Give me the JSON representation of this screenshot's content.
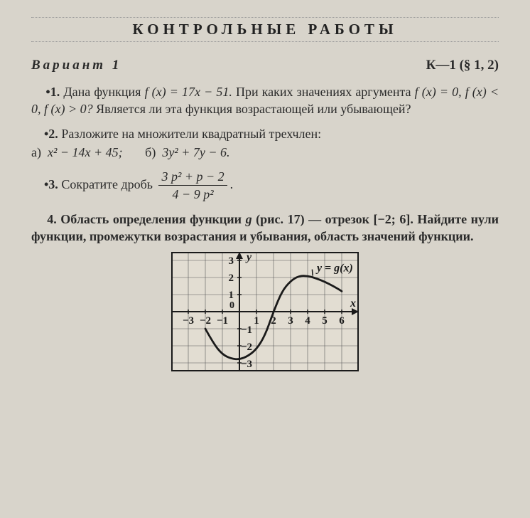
{
  "title": "КОНТРОЛЬНЫЕ РАБОТЫ",
  "variant": "Вариант 1",
  "code": "К—1 (§ 1, 2)",
  "q1": {
    "lead": "•1. ",
    "text_a": "Дана функция ",
    "fx_eq": "f (x) = 17x − 51.",
    "text_b": " При каких значени­ях аргумента ",
    "c1": "f (x) = 0, ",
    "c2": "f (x) < 0, ",
    "c3": "f (x) > 0?",
    "text_c": " Является ли эта функция возрастающей или убывающей?"
  },
  "q2": {
    "lead": "•2. ",
    "text": "Разложите на множители квадратный трехчлен:",
    "a_label": "а) ",
    "a_expr": "x² − 14x + 45;",
    "b_label": "б) ",
    "b_expr": "3y² + 7y − 6."
  },
  "q3": {
    "lead": "•3. ",
    "text": "Сократите дробь ",
    "num": "3 p² + p − 2",
    "den": "4 − 9 p²",
    "period": "."
  },
  "q4": {
    "lead": "4. ",
    "text_a": "Область определения функции ",
    "g": "g",
    "ref": " (рис. 17) — отрезок [−2; 6]. Найдите нули функции, промежутки возрастания и убывания, область значений функции."
  },
  "chart": {
    "x_label": "x",
    "y_label": "y",
    "curve_label": "y = g(x)",
    "background": "#e2ddd2",
    "grid_color": "#5a5a5a",
    "axis_color": "#1a1a1a",
    "curve_color": "#1a1a1a",
    "text_color": "#1a1a1a",
    "border_color": "#1a1a1a",
    "cell": 24,
    "x_range": [
      -4,
      7
    ],
    "y_range": [
      -3.5,
      3.5
    ],
    "x_ticks": [
      -3,
      -2,
      -1,
      1,
      2,
      3,
      4,
      5,
      6
    ],
    "y_ticks_pos": [
      1,
      2,
      3
    ],
    "y_ticks_neg": [
      -1,
      -2,
      -3
    ],
    "zero_label": "0",
    "curve_points": [
      [
        -2,
        -1
      ],
      [
        -1.5,
        -1.9
      ],
      [
        -1,
        -2.5
      ],
      [
        -0.5,
        -2.75
      ],
      [
        0,
        -2.8
      ],
      [
        0.5,
        -2.6
      ],
      [
        1,
        -2.2
      ],
      [
        1.5,
        -1.4
      ],
      [
        2,
        0
      ],
      [
        2.5,
        1.2
      ],
      [
        3,
        1.8
      ],
      [
        3.5,
        2.1
      ],
      [
        4,
        2.1
      ],
      [
        4.5,
        1.95
      ],
      [
        5,
        1.75
      ],
      [
        5.5,
        1.5
      ],
      [
        6,
        1.2
      ]
    ],
    "label_anchor": [
      5.6,
      2.35
    ]
  }
}
